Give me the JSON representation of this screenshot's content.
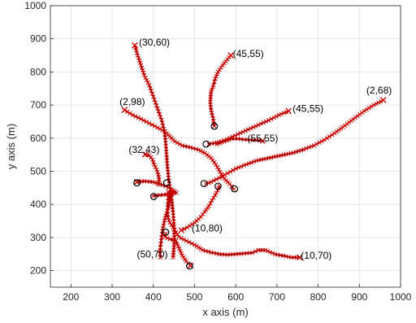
{
  "chart_data": {
    "type": "line",
    "title": "",
    "xlabel": "x axis (m)",
    "ylabel": "y axis (m)",
    "xlim": [
      150,
      1000
    ],
    "ylim": [
      150,
      1000
    ],
    "xticks": [
      200,
      300,
      400,
      500,
      600,
      700,
      800,
      900,
      1000
    ],
    "yticks": [
      200,
      300,
      400,
      500,
      600,
      700,
      800,
      900,
      1000
    ],
    "grid": true,
    "colors": {
      "true_track": "#cc0000",
      "estimate": "#000000",
      "grid": "#e0e0e0",
      "axis": "#262626"
    },
    "tracks": [
      {
        "points": [
          [
            355,
            880
          ],
          [
            362,
            850
          ],
          [
            370,
            820
          ],
          [
            378,
            790
          ],
          [
            390,
            760
          ],
          [
            400,
            725
          ],
          [
            410,
            690
          ],
          [
            420,
            655
          ],
          [
            427,
            620
          ],
          [
            430,
            585
          ],
          [
            432,
            550
          ],
          [
            434,
            515
          ],
          [
            437,
            480
          ],
          [
            441,
            445
          ],
          [
            445,
            410
          ],
          [
            448,
            375
          ],
          [
            450,
            340
          ],
          [
            451,
            300
          ],
          [
            450,
            270
          ],
          [
            448,
            240
          ]
        ],
        "start_marker": [
          355,
          880
        ],
        "end_marker": [
          448,
          240
        ]
      },
      {
        "points": [
          [
            588,
            850
          ],
          [
            580,
            838
          ],
          [
            568,
            820
          ],
          [
            557,
            800
          ],
          [
            550,
            780
          ],
          [
            546,
            760
          ],
          [
            540,
            740
          ],
          [
            538,
            710
          ],
          [
            540,
            685
          ],
          [
            545,
            660
          ],
          [
            548,
            636
          ]
        ],
        "start_marker": [
          588,
          850
        ],
        "end_marker": [
          548,
          636
        ]
      },
      {
        "points": [
          [
            958,
            715
          ],
          [
            935,
            700
          ],
          [
            912,
            682
          ],
          [
            890,
            662
          ],
          [
            865,
            638
          ],
          [
            840,
            615
          ],
          [
            815,
            595
          ],
          [
            790,
            578
          ],
          [
            765,
            566
          ],
          [
            740,
            556
          ],
          [
            710,
            548
          ],
          [
            680,
            540
          ],
          [
            650,
            532
          ],
          [
            620,
            518
          ],
          [
            600,
            508
          ],
          [
            580,
            494
          ],
          [
            560,
            480
          ],
          [
            540,
            468
          ],
          [
            528,
            462
          ]
        ],
        "start_marker": [
          958,
          715
        ],
        "end_marker": [
          528,
          462
        ]
      },
      {
        "points": [
          [
            728,
            682
          ],
          [
            705,
            670
          ],
          [
            680,
            654
          ],
          [
            655,
            640
          ],
          [
            630,
            626
          ],
          [
            605,
            612
          ],
          [
            585,
            600
          ],
          [
            565,
            590
          ],
          [
            548,
            585
          ],
          [
            535,
            582
          ]
        ],
        "start_marker": [
          728,
          682
        ],
        "end_marker": [
          535,
          582
        ]
      },
      {
        "points": [
          [
            330,
            685
          ],
          [
            350,
            670
          ],
          [
            370,
            658
          ],
          [
            390,
            645
          ],
          [
            410,
            632
          ],
          [
            428,
            620
          ],
          [
            440,
            605
          ],
          [
            452,
            590
          ],
          [
            470,
            578
          ],
          [
            490,
            572
          ],
          [
            510,
            565
          ],
          [
            525,
            555
          ],
          [
            540,
            540
          ],
          [
            552,
            520
          ],
          [
            562,
            498
          ],
          [
            572,
            478
          ],
          [
            585,
            462
          ],
          [
            595,
            446
          ]
        ],
        "start_marker": [
          330,
          685
        ],
        "end_marker": [
          595,
          446
        ]
      },
      {
        "points": [
          [
            380,
            551
          ],
          [
            390,
            548
          ],
          [
            398,
            535
          ],
          [
            402,
            520
          ],
          [
            408,
            505
          ],
          [
            412,
            490
          ],
          [
            414,
            475
          ],
          [
            412,
            460
          ]
        ],
        "start_marker": [
          380,
          551
        ],
        "end_marker": [
          412,
          460
        ]
      },
      {
        "points": [
          [
            360,
            468
          ],
          [
            378,
            470
          ],
          [
            398,
            468
          ],
          [
            415,
            462
          ],
          [
            430,
            455
          ],
          [
            443,
            446
          ],
          [
            452,
            440
          ],
          [
            456,
            435
          ],
          [
            446,
            433
          ],
          [
            432,
            430
          ],
          [
            416,
            428
          ],
          [
            400,
            426
          ]
        ],
        "start_marker": [
          360,
          468
        ],
        "end_marker": [
          400,
          426
        ]
      },
      {
        "points": [
          [
            665,
            592
          ],
          [
            650,
            594
          ],
          [
            635,
            595
          ],
          [
            620,
            596
          ],
          [
            605,
            598
          ],
          [
            590,
            598
          ],
          [
            572,
            590
          ],
          [
            555,
            582
          ]
        ],
        "start_marker": [
          665,
          592
        ],
        "end_marker": [
          555,
          582
        ]
      },
      {
        "points": [
          [
            468,
            322
          ],
          [
            482,
            330
          ],
          [
            500,
            345
          ],
          [
            515,
            362
          ],
          [
            525,
            378
          ],
          [
            535,
            395
          ],
          [
            542,
            412
          ],
          [
            550,
            428
          ],
          [
            556,
            442
          ],
          [
            560,
            455
          ]
        ],
        "start_marker": [
          468,
          322
        ],
        "end_marker": [
          560,
          455
        ]
      },
      {
        "points": [
          [
            755,
            240
          ],
          [
            735,
            240
          ],
          [
            715,
            245
          ],
          [
            695,
            250
          ],
          [
            672,
            262
          ],
          [
            655,
            262
          ],
          [
            640,
            254
          ],
          [
            620,
            252
          ],
          [
            600,
            250
          ],
          [
            580,
            248
          ],
          [
            560,
            250
          ],
          [
            540,
            255
          ],
          [
            520,
            262
          ],
          [
            500,
            278
          ],
          [
            480,
            290
          ],
          [
            462,
            302
          ],
          [
            455,
            316
          ],
          [
            448,
            330
          ],
          [
            440,
            345
          ],
          [
            436,
            360
          ],
          [
            434,
            380
          ],
          [
            435,
            400
          ],
          [
            436,
            420
          ],
          [
            436,
            438
          ]
        ],
        "start_marker": [
          755,
          240
        ],
        "end_marker": [
          436,
          438
        ]
      },
      {
        "points": [
          [
            490,
            215
          ],
          [
            480,
            228
          ],
          [
            470,
            246
          ],
          [
            463,
            266
          ],
          [
            458,
            280
          ],
          [
            455,
            290
          ],
          [
            440,
            295
          ],
          [
            428,
            302
          ],
          [
            430,
            312
          ]
        ],
        "start_marker": [
          490,
          215
        ],
        "end_marker": [
          430,
          312
        ]
      },
      {
        "points": [
          [
            442,
            432
          ],
          [
            440,
            410
          ],
          [
            436,
            388
          ],
          [
            430,
            366
          ],
          [
            426,
            344
          ],
          [
            422,
            320
          ],
          [
            420,
            300
          ],
          [
            418,
            280
          ],
          [
            416,
            260
          ],
          [
            417,
            240
          ]
        ],
        "start_marker": [
          442,
          432
        ],
        "end_marker": [
          417,
          240
        ]
      }
    ],
    "circle_markers": [
      [
        548,
        636
      ],
      [
        528,
        582
      ],
      [
        360,
        465
      ],
      [
        401,
        424
      ],
      [
        432,
        465
      ],
      [
        523,
        463
      ],
      [
        557,
        455
      ],
      [
        597,
        447
      ],
      [
        430,
        316
      ],
      [
        488,
        214
      ]
    ],
    "annotations": [
      {
        "text": "(30,60)",
        "x": 365,
        "y": 880
      },
      {
        "text": "(45,55)",
        "x": 593,
        "y": 845
      },
      {
        "text": "(2,68)",
        "x": 917,
        "y": 735
      },
      {
        "text": "(2,98)",
        "x": 318,
        "y": 700
      },
      {
        "text": "(45,55)",
        "x": 738,
        "y": 680
      },
      {
        "text": "(55,55)",
        "x": 628,
        "y": 590
      },
      {
        "text": "(32,43)",
        "x": 340,
        "y": 555
      },
      {
        "text": "(10,80)",
        "x": 493,
        "y": 318
      },
      {
        "text": "(50,70)",
        "x": 360,
        "y": 240
      },
      {
        "text": "(10,70)",
        "x": 758,
        "y": 236
      }
    ]
  }
}
